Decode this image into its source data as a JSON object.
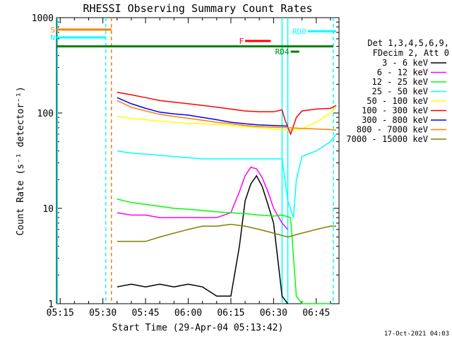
{
  "chart_data": {
    "type": "line",
    "title": "RHESSI Observing Summary Count Rates",
    "xlabel": "Start Time (29-Apr-04 05:13:42)",
    "ylabel": "Count Rate (s⁻¹ detector⁻¹)",
    "yscale": "log",
    "ylim": [
      1,
      1000
    ],
    "xlim": [
      "05:13:42",
      "06:53:00"
    ],
    "x_ticks": [
      "05:15",
      "05:30",
      "05:45",
      "06:00",
      "06:15",
      "06:30",
      "06:45"
    ],
    "y_ticks": [
      "1",
      "10",
      "100",
      "1000"
    ],
    "legend_position": "right",
    "legend_header": [
      "Det 1,3,4,5,6,9,",
      "FDecim 2, Att 0"
    ],
    "timestamp": "17-Oct-2021 04:03",
    "series": [
      {
        "name": "3 - 6 keV",
        "color": "#000000",
        "x": [
          "05:35",
          "05:40",
          "05:45",
          "05:50",
          "05:55",
          "06:00",
          "06:05",
          "06:10",
          "06:15",
          "06:18",
          "06:20",
          "06:22",
          "06:24",
          "06:26",
          "06:28",
          "06:30",
          "06:33",
          "06:35"
        ],
        "values": [
          1.5,
          1.6,
          1.5,
          1.6,
          1.5,
          1.6,
          1.5,
          1.2,
          1.2,
          4,
          12,
          18,
          22,
          17,
          11,
          7,
          1.2,
          1
        ]
      },
      {
        "name": "6 - 12 keV",
        "color": "#ff00ff",
        "x": [
          "05:35",
          "05:40",
          "05:45",
          "05:50",
          "05:55",
          "06:00",
          "06:05",
          "06:10",
          "06:15",
          "06:18",
          "06:20",
          "06:22",
          "06:24",
          "06:26",
          "06:28",
          "06:30",
          "06:33",
          "06:35"
        ],
        "values": [
          9,
          8.5,
          8.5,
          8,
          8,
          8,
          8,
          8,
          9,
          15,
          22,
          27,
          26,
          21,
          15,
          10,
          7,
          6
        ]
      },
      {
        "name": "12 - 25 keV",
        "color": "#00ff00",
        "x": [
          "05:35",
          "05:40",
          "05:45",
          "05:50",
          "05:55",
          "06:00",
          "06:05",
          "06:10",
          "06:15",
          "06:20",
          "06:25",
          "06:30",
          "06:33",
          "06:36",
          "06:38",
          "06:40",
          "06:45",
          "06:50"
        ],
        "values": [
          12.5,
          11.5,
          11,
          10.5,
          10,
          9.8,
          9.5,
          9.2,
          9,
          8.8,
          8.5,
          8.3,
          8.5,
          8,
          1.2,
          1,
          1,
          1
        ]
      },
      {
        "name": "25 - 50 keV",
        "color": "#00ffff",
        "x": [
          "05:35",
          "05:40",
          "05:45",
          "05:50",
          "05:55",
          "06:00",
          "06:05",
          "06:10",
          "06:15",
          "06:20",
          "06:25",
          "06:30",
          "06:33",
          "06:35",
          "06:37",
          "06:38",
          "06:40",
          "06:45",
          "06:50",
          "06:52"
        ],
        "values": [
          40,
          38,
          37,
          36,
          35,
          34,
          33,
          33,
          33,
          33,
          33,
          33,
          33,
          12,
          8,
          20,
          35,
          40,
          50,
          60
        ]
      },
      {
        "name": "50 - 100 keV",
        "color": "#ffff00",
        "x": [
          "05:35",
          "05:40",
          "05:45",
          "05:50",
          "05:55",
          "06:00",
          "06:05",
          "06:10",
          "06:15",
          "06:20",
          "06:25",
          "06:30",
          "06:35",
          "06:40",
          "06:45",
          "06:50",
          "06:52"
        ],
        "values": [
          92,
          88,
          85,
          82,
          80,
          78,
          77,
          76,
          74,
          72,
          70,
          68,
          66,
          68,
          80,
          100,
          115
        ]
      },
      {
        "name": "100 - 300 keV",
        "color": "#ff0000",
        "x": [
          "05:35",
          "05:40",
          "05:45",
          "05:50",
          "05:55",
          "06:00",
          "06:05",
          "06:10",
          "06:15",
          "06:20",
          "06:25",
          "06:30",
          "06:33",
          "06:34",
          "06:36",
          "06:38",
          "06:40",
          "06:45",
          "06:50",
          "06:52"
        ],
        "values": [
          165,
          155,
          145,
          135,
          130,
          125,
          120,
          115,
          110,
          105,
          103,
          103,
          108,
          85,
          60,
          90,
          105,
          110,
          112,
          120
        ]
      },
      {
        "name": "300 - 800 keV",
        "color": "#0000ff",
        "x": [
          "05:35",
          "05:40",
          "05:45",
          "05:50",
          "05:55",
          "06:00",
          "06:05",
          "06:10",
          "06:15",
          "06:20",
          "06:25",
          "06:30",
          "06:35"
        ],
        "values": [
          145,
          125,
          112,
          102,
          98,
          95,
          90,
          85,
          80,
          77,
          75,
          74,
          73
        ]
      },
      {
        "name": "800 - 7000 keV",
        "color": "#ff8000",
        "x": [
          "05:35",
          "05:40",
          "05:45",
          "05:50",
          "05:55",
          "06:00",
          "06:05",
          "06:10",
          "06:15",
          "06:20",
          "06:25",
          "06:30",
          "06:35",
          "06:40",
          "06:45",
          "06:50",
          "06:52"
        ],
        "values": [
          135,
          115,
          105,
          97,
          92,
          88,
          84,
          80,
          77,
          74,
          72,
          71,
          70,
          69,
          68,
          67,
          66
        ]
      },
      {
        "name": "7000 - 15000 keV",
        "color": "#808000",
        "x": [
          "05:35",
          "05:40",
          "05:45",
          "05:50",
          "05:55",
          "06:00",
          "06:05",
          "06:10",
          "06:15",
          "06:20",
          "06:25",
          "06:30",
          "06:35",
          "06:40",
          "06:45",
          "06:50",
          "06:52"
        ],
        "values": [
          4.5,
          4.5,
          4.5,
          5,
          5.5,
          6,
          6.5,
          6.5,
          6.8,
          6.5,
          6,
          5.5,
          5,
          5.5,
          6,
          6.5,
          6.5
        ]
      }
    ],
    "flag_bars": [
      {
        "label": "S",
        "color": "#ff8000",
        "start": "05:13:42",
        "end": "05:33",
        "value": 750
      },
      {
        "label": "N",
        "color": "#00ffff",
        "start": "05:13:42",
        "end": "05:31",
        "value": 620
      },
      {
        "label": "",
        "color": "#008000",
        "start": "05:13:42",
        "end": "06:51",
        "value": 500
      },
      {
        "label": "F",
        "color": "#ff0000",
        "start": "06:20",
        "end": "06:29",
        "value": 570
      },
      {
        "label": "RD4",
        "color": "#008000",
        "start": "06:36",
        "end": "06:39",
        "value": 440
      },
      {
        "label": "RD0",
        "color": "#00ffff",
        "start": "06:42",
        "end": "06:52",
        "value": 720
      }
    ],
    "vertical_markers": [
      {
        "x": "05:14",
        "color": "#00ffff",
        "style": "solid"
      },
      {
        "x": "05:31",
        "color": "#00ffff",
        "style": "dashed"
      },
      {
        "x": "05:33",
        "color": "#ff8000",
        "style": "dashed"
      },
      {
        "x": "06:33",
        "color": "#00ffff",
        "style": "solid"
      },
      {
        "x": "06:35",
        "color": "#00ffff",
        "style": "solid"
      },
      {
        "x": "06:51",
        "color": "#00ffff",
        "style": "dashed"
      }
    ]
  }
}
